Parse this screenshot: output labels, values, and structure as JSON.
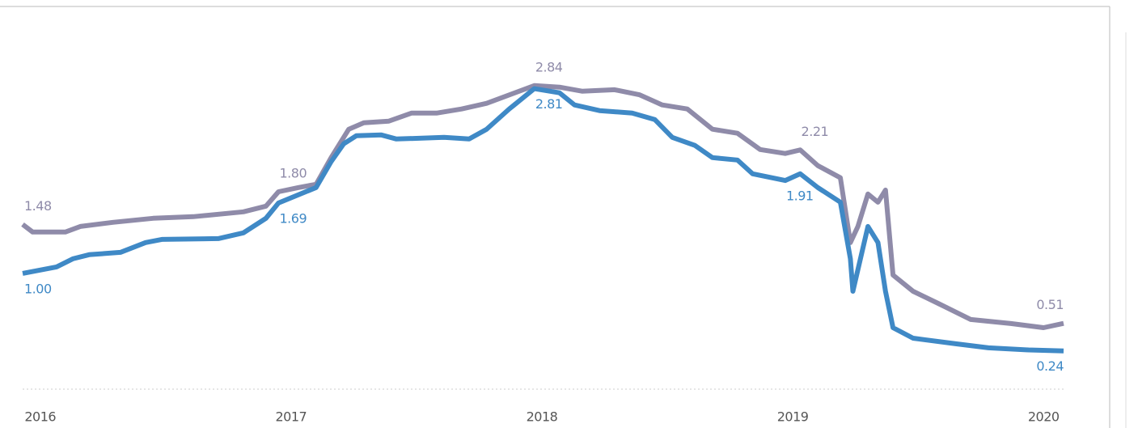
{
  "chart_data": {
    "type": "line",
    "xlim": [
      2015.93,
      2020.08
    ],
    "xticks": [
      2016,
      2017,
      2018,
      2019,
      2020
    ],
    "ylim": [
      0,
      3.6
    ],
    "series": [
      {
        "color": "#8f8ba9",
        "x": [
          2015.93,
          2015.97,
          2016.1,
          2016.16,
          2016.29,
          2016.45,
          2016.61,
          2016.81,
          2016.9,
          2016.95,
          2017.03,
          2017.1,
          2017.16,
          2017.23,
          2017.29,
          2017.39,
          2017.48,
          2017.58,
          2017.68,
          2017.78,
          2017.97,
          2018.07,
          2018.16,
          2018.29,
          2018.39,
          2018.48,
          2018.58,
          2018.68,
          2018.78,
          2018.87,
          2018.97,
          2019.03,
          2019.1,
          2019.19,
          2019.23,
          2019.26,
          2019.3,
          2019.34,
          2019.37,
          2019.4,
          2019.48,
          2019.58,
          2019.71,
          2019.87,
          2020.0,
          2020.08
        ],
        "values": [
          1.48,
          1.405,
          1.405,
          1.46,
          1.5,
          1.54,
          1.556,
          1.603,
          1.659,
          1.8,
          1.841,
          1.873,
          2.135,
          2.413,
          2.476,
          2.492,
          2.571,
          2.571,
          2.611,
          2.667,
          2.84,
          2.825,
          2.786,
          2.8,
          2.75,
          2.651,
          2.611,
          2.413,
          2.373,
          2.214,
          2.175,
          2.21,
          2.056,
          1.937,
          1.302,
          1.46,
          1.778,
          1.698,
          1.817,
          0.984,
          0.825,
          0.706,
          0.548,
          0.508,
          0.468,
          0.51
        ],
        "value_labels": [
          "1.48",
          null,
          null,
          null,
          null,
          null,
          null,
          null,
          null,
          "1.80",
          null,
          null,
          null,
          null,
          null,
          null,
          null,
          null,
          null,
          null,
          "2.84",
          null,
          null,
          null,
          null,
          null,
          null,
          null,
          null,
          null,
          null,
          "2.21",
          null,
          null,
          null,
          null,
          null,
          null,
          null,
          null,
          null,
          null,
          null,
          null,
          null,
          "0.51"
        ]
      },
      {
        "color": "#3f89c6",
        "x": [
          2015.93,
          2016.065,
          2016.13,
          2016.195,
          2016.32,
          2016.42,
          2016.485,
          2016.71,
          2016.81,
          2016.9,
          2016.95,
          2017.1,
          2017.16,
          2017.21,
          2017.26,
          2017.36,
          2017.42,
          2017.61,
          2017.71,
          2017.78,
          2017.87,
          2017.97,
          2018.07,
          2018.13,
          2018.23,
          2018.36,
          2018.45,
          2018.52,
          2018.61,
          2018.68,
          2018.78,
          2018.84,
          2018.97,
          2019.03,
          2019.1,
          2019.19,
          2019.23,
          2019.24,
          2019.27,
          2019.3,
          2019.34,
          2019.37,
          2019.4,
          2019.48,
          2019.65,
          2019.78,
          2019.94,
          2020.08
        ],
        "values": [
          1.0,
          1.063,
          1.143,
          1.183,
          1.206,
          1.302,
          1.333,
          1.341,
          1.397,
          1.54,
          1.69,
          1.841,
          2.095,
          2.27,
          2.349,
          2.357,
          2.317,
          2.333,
          2.317,
          2.413,
          2.611,
          2.81,
          2.77,
          2.651,
          2.595,
          2.571,
          2.508,
          2.333,
          2.254,
          2.135,
          2.111,
          1.976,
          1.91,
          1.976,
          1.841,
          1.698,
          1.143,
          0.825,
          1.143,
          1.46,
          1.302,
          0.825,
          0.468,
          0.365,
          0.31,
          0.27,
          0.25,
          0.24
        ],
        "value_labels": [
          "1.00",
          null,
          null,
          null,
          null,
          null,
          null,
          null,
          null,
          null,
          "1.69",
          null,
          null,
          null,
          null,
          null,
          null,
          null,
          null,
          null,
          null,
          "2.81",
          null,
          null,
          null,
          null,
          null,
          null,
          null,
          null,
          null,
          null,
          "1.91",
          null,
          null,
          null,
          null,
          null,
          null,
          null,
          null,
          null,
          null,
          null,
          null,
          null,
          null,
          "0.24"
        ]
      }
    ]
  }
}
